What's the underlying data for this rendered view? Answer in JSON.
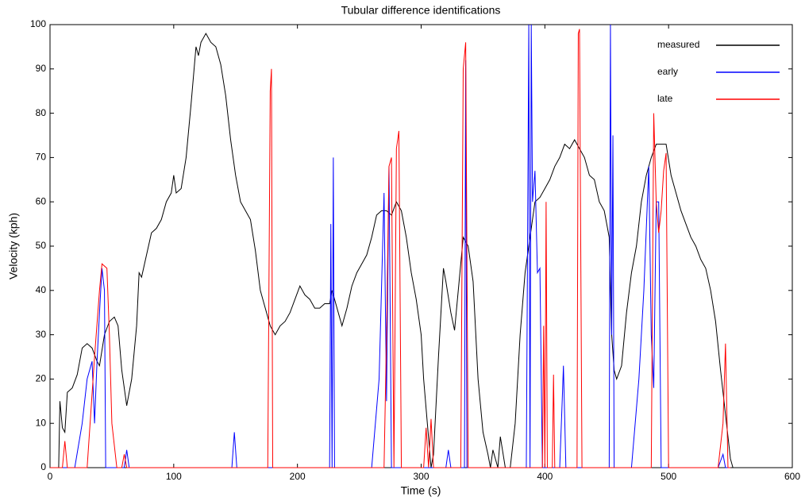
{
  "chart_data": {
    "type": "line",
    "title": "Tubular difference identifications",
    "xlabel": "Time (s)",
    "ylabel": "Velocity (kph)",
    "xlim": [
      0,
      600
    ],
    "ylim": [
      0,
      100
    ],
    "xticks": [
      0,
      100,
      200,
      300,
      400,
      500,
      600
    ],
    "yticks": [
      0,
      10,
      20,
      30,
      40,
      50,
      60,
      70,
      80,
      90,
      100
    ],
    "grid": false,
    "legend": "upper right",
    "series": [
      {
        "name": "measured",
        "color": "#000000",
        "x": [
          7,
          8,
          10,
          12,
          14,
          18,
          22,
          26,
          30,
          34,
          38,
          40,
          44,
          48,
          52,
          55,
          58,
          62,
          66,
          70,
          72,
          74,
          78,
          82,
          86,
          90,
          94,
          98,
          100,
          102,
          106,
          110,
          114,
          118,
          120,
          122,
          126,
          130,
          134,
          138,
          142,
          146,
          150,
          154,
          158,
          162,
          166,
          170,
          174,
          178,
          182,
          186,
          190,
          194,
          198,
          202,
          206,
          210,
          214,
          218,
          222,
          226,
          228,
          232,
          236,
          240,
          244,
          248,
          252,
          256,
          260,
          264,
          268,
          272,
          276,
          280,
          284,
          288,
          292,
          296,
          300,
          302,
          305,
          308,
          310,
          314,
          318,
          320,
          324,
          327,
          330,
          334,
          338,
          342,
          346,
          350,
          354,
          356,
          358,
          360,
          362,
          364,
          368,
          372,
          376,
          380,
          384,
          388,
          392,
          396,
          400,
          404,
          408,
          412,
          416,
          420,
          424,
          428,
          432,
          436,
          440,
          444,
          448,
          452,
          454,
          456,
          458,
          462,
          466,
          470,
          474,
          478,
          482,
          486,
          490,
          494,
          498,
          502,
          506,
          510,
          514,
          518,
          522,
          526,
          530,
          534,
          538,
          542,
          546,
          550,
          552
        ],
        "values": [
          0,
          15,
          9,
          8,
          17,
          18,
          21,
          27,
          28,
          27,
          24,
          23,
          30,
          33,
          34,
          32,
          22,
          14,
          20,
          32,
          44,
          43,
          48,
          53,
          54,
          56,
          60,
          62,
          66,
          62,
          63,
          70,
          82,
          95,
          93,
          96,
          98,
          96,
          95,
          91,
          84,
          74,
          66,
          60,
          58,
          56,
          49,
          40,
          36,
          32,
          30,
          32,
          33,
          35,
          38,
          41,
          39,
          38,
          36,
          36,
          37,
          37,
          40,
          36,
          32,
          36,
          41,
          44,
          46,
          48,
          52,
          57,
          58,
          58,
          57,
          60,
          58,
          52,
          44,
          38,
          30,
          20,
          10,
          0,
          3,
          25,
          45,
          42,
          35,
          31,
          40,
          52,
          50,
          42,
          20,
          8,
          3,
          0,
          4,
          2,
          0,
          7,
          0,
          0,
          10,
          30,
          44,
          52,
          60,
          61,
          63,
          65,
          68,
          70,
          73,
          72,
          74,
          72,
          70,
          66,
          65,
          60,
          58,
          52,
          30,
          22,
          20,
          23,
          35,
          44,
          50,
          60,
          66,
          70,
          73,
          73,
          73,
          66,
          62,
          58,
          55,
          52,
          50,
          47,
          45,
          40,
          33,
          22,
          12,
          2,
          0
        ]
      },
      {
        "name": "early",
        "color": "#0000ff",
        "x": [
          0,
          20,
          26,
          30,
          34,
          36,
          38,
          40,
          42,
          44,
          45,
          60,
          62,
          64,
          147,
          149,
          151,
          226,
          227,
          228,
          229,
          230,
          260,
          266,
          270,
          272,
          274,
          276,
          320,
          322,
          324,
          335,
          336,
          337,
          385,
          387,
          388,
          389,
          390,
          392,
          394,
          396,
          398,
          412,
          414,
          415,
          417,
          452,
          453,
          454,
          455,
          456,
          470,
          476,
          480,
          484,
          486,
          488,
          490,
          492,
          494,
          540,
          544,
          546,
          550
        ],
        "values": [
          0,
          0,
          10,
          20,
          24,
          10,
          24,
          35,
          45,
          40,
          0,
          0,
          4,
          0,
          0,
          8,
          0,
          0,
          55,
          0,
          70,
          0,
          0,
          20,
          62,
          15,
          68,
          0,
          0,
          4,
          0,
          0,
          92,
          0,
          0,
          100,
          0,
          100,
          60,
          67,
          44,
          45,
          0,
          0,
          15,
          23,
          0,
          0,
          100,
          30,
          75,
          0,
          0,
          20,
          40,
          68,
          30,
          18,
          60,
          60,
          0,
          0,
          3,
          0,
          0
        ]
      },
      {
        "name": "late",
        "color": "#ff0000",
        "x": [
          0,
          10,
          12,
          14,
          30,
          36,
          40,
          42,
          46,
          48,
          50,
          54,
          58,
          60,
          62,
          176,
          178,
          179,
          180,
          270,
          272,
          274,
          276,
          278,
          280,
          282,
          284,
          302,
          304,
          306,
          308,
          310,
          332,
          334,
          336,
          338,
          398,
          399,
          400,
          401,
          402,
          406,
          407,
          408,
          426,
          427,
          428,
          430,
          486,
          488,
          490,
          492,
          494,
          496,
          498,
          500,
          540,
          544,
          546,
          548,
          550
        ],
        "values": [
          0,
          0,
          6,
          0,
          0,
          25,
          40,
          46,
          45,
          30,
          10,
          0,
          0,
          3,
          0,
          0,
          85,
          90,
          0,
          0,
          30,
          68,
          70,
          0,
          72,
          76,
          0,
          0,
          9,
          0,
          11,
          0,
          0,
          90,
          96,
          0,
          0,
          32,
          0,
          60,
          0,
          0,
          21,
          0,
          0,
          98,
          99,
          0,
          0,
          80,
          60,
          53,
          58,
          67,
          71,
          0,
          0,
          10,
          28,
          0,
          0
        ]
      }
    ]
  }
}
